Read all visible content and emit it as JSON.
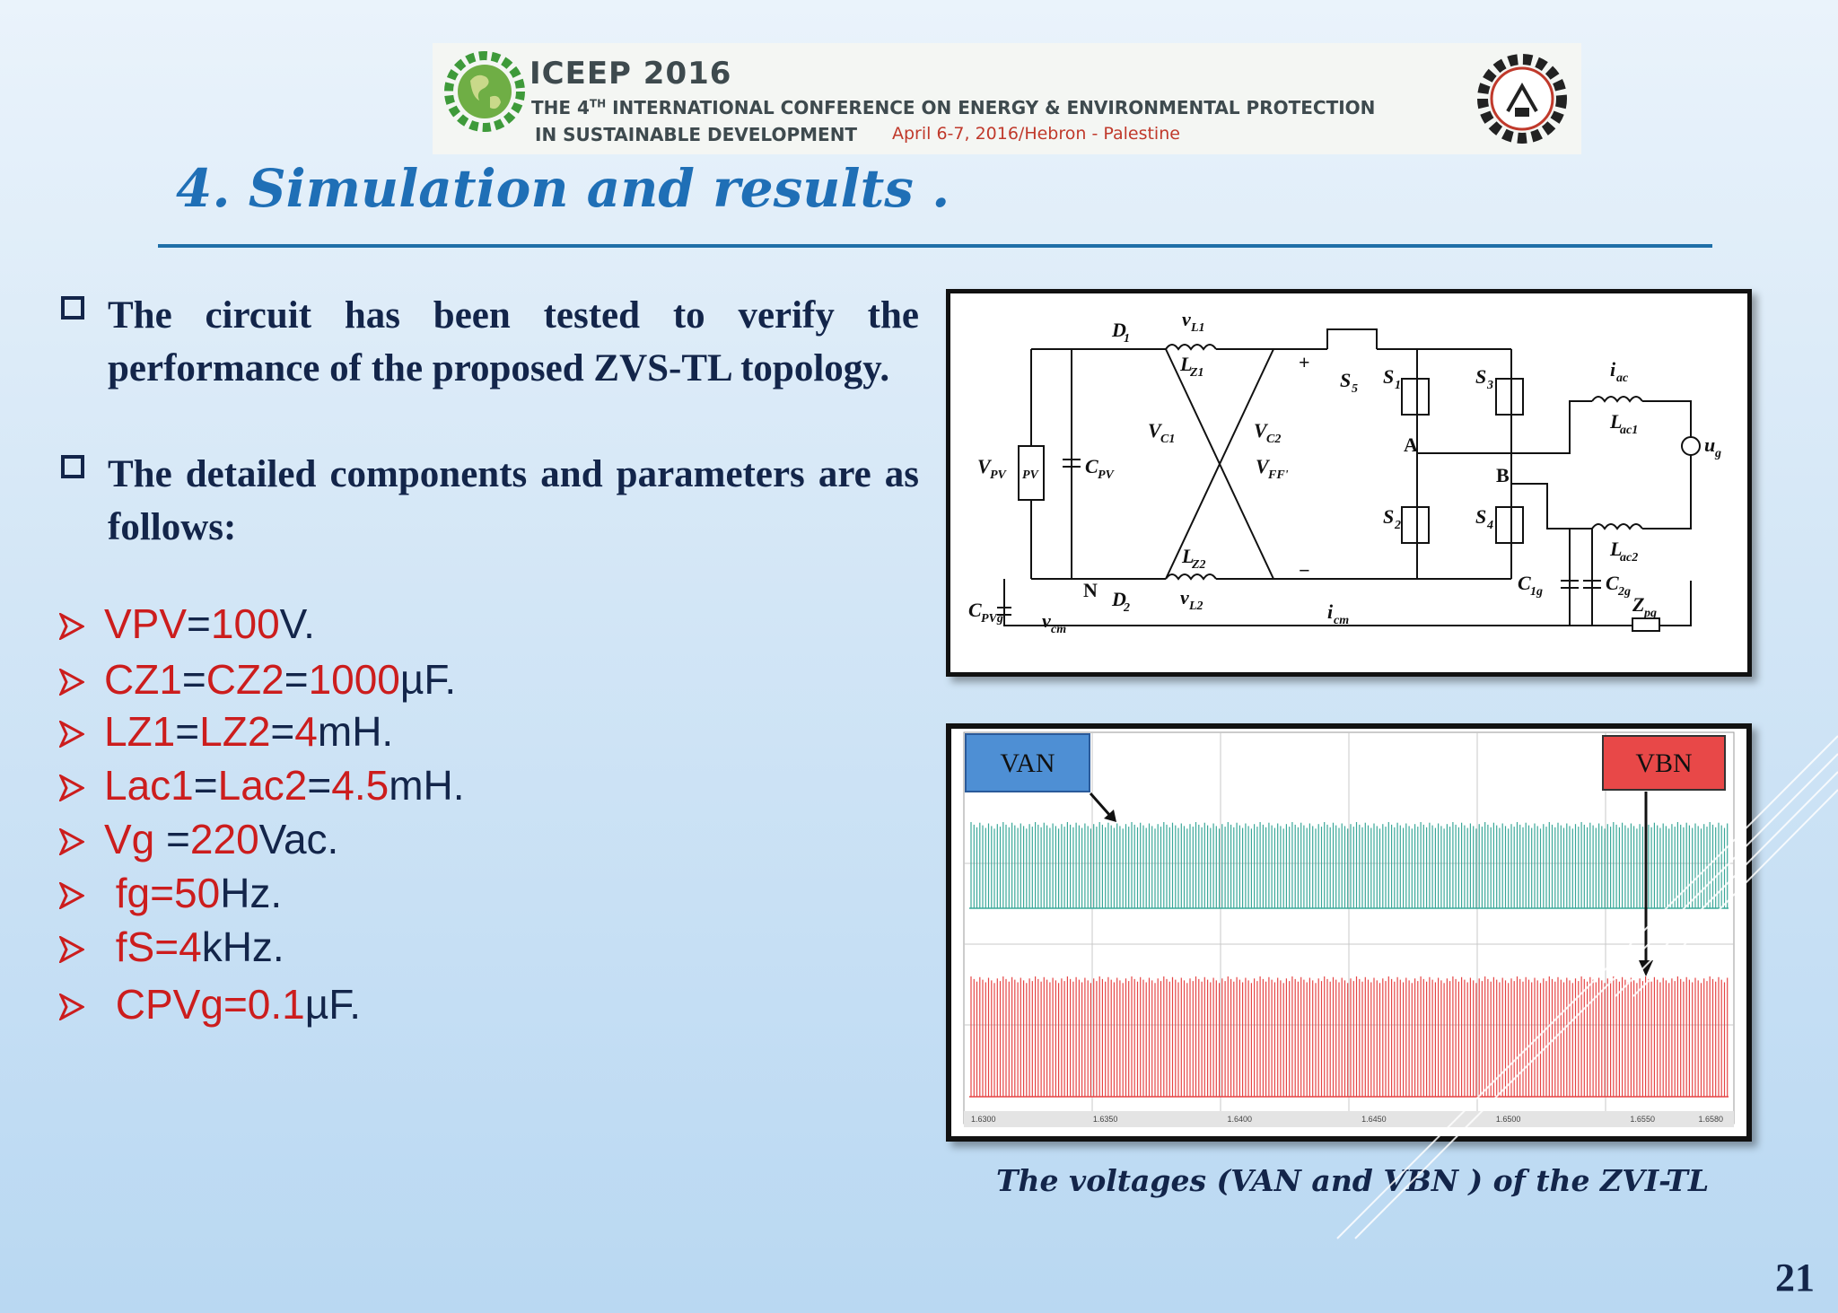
{
  "banner": {
    "title": "ICEEP 2016",
    "line1_pre": "THE 4",
    "line1_sup": "TH",
    "line1_post": " INTERNATIONAL CONFERENCE ON ENERGY & ENVIRONMENTAL PROTECTION",
    "line2": "IN SUSTAINABLE DEVELOPMENT",
    "date": "April  6-7, 2016/Hebron - Palestine"
  },
  "slide": {
    "title": "4. Simulation and results .",
    "page_number": "21"
  },
  "bullets": [
    {
      "text": "The circuit  has  been tested to verify the performance of the proposed ZVS-TL topology."
    },
    {
      "text": "The detailed components and parameters are as follows:"
    }
  ],
  "parameters": [
    {
      "parts": [
        {
          "t": "VPV",
          "c": "red"
        },
        {
          "t": "=",
          "c": "navy"
        },
        {
          "t": "100",
          "c": "red"
        },
        {
          "t": "V.",
          "c": "navy"
        }
      ]
    },
    {
      "parts": [
        {
          "t": "CZ1",
          "c": "red"
        },
        {
          "t": "=",
          "c": "navy"
        },
        {
          "t": "CZ2",
          "c": "red"
        },
        {
          "t": "=",
          "c": "navy"
        },
        {
          "t": "1000",
          "c": "red"
        },
        {
          "t": "µF.",
          "c": "navy"
        }
      ]
    },
    {
      "parts": [
        {
          "t": "LZ1",
          "c": "red"
        },
        {
          "t": "=",
          "c": "navy"
        },
        {
          "t": "LZ2",
          "c": "red"
        },
        {
          "t": "=",
          "c": "navy"
        },
        {
          "t": "4",
          "c": "red"
        },
        {
          "t": "mH.",
          "c": "navy"
        }
      ]
    },
    {
      "parts": [
        {
          "t": "Lac1",
          "c": "red"
        },
        {
          "t": "=",
          "c": "navy"
        },
        {
          "t": "Lac2",
          "c": "red"
        },
        {
          "t": "=",
          "c": "navy"
        },
        {
          "t": "4.5",
          "c": "red"
        },
        {
          "t": "mH.",
          "c": "navy"
        }
      ]
    },
    {
      "parts": [
        {
          "t": "Vg ",
          "c": "red"
        },
        {
          "t": "=",
          "c": "navy"
        },
        {
          "t": "220",
          "c": "red"
        },
        {
          "t": "Vac.",
          "c": "navy"
        }
      ]
    },
    {
      "parts": [
        {
          "t": " fg=50",
          "c": "red"
        },
        {
          "t": "Hz.",
          "c": "navy"
        }
      ]
    },
    {
      "parts": [
        {
          "t": " fS=4",
          "c": "red"
        },
        {
          "t": "kHz.",
          "c": "navy"
        }
      ]
    },
    {
      "parts": [
        {
          "t": " CPVg=0.1",
          "c": "red"
        },
        {
          "t": "µF.",
          "c": "navy"
        }
      ]
    }
  ],
  "circuit": {
    "labels": {
      "D1": "D",
      "D1_sub": "1",
      "D2": "D",
      "D2_sub": "2",
      "vL1": "v",
      "vL1_sub": "L1",
      "LZ1": "L",
      "LZ1_sub": "Z1",
      "vL2": "v",
      "vL2_sub": "L2",
      "LZ2": "L",
      "LZ2_sub": "Z2",
      "VC1": "V",
      "VC1_sub": "C1",
      "VC2": "V",
      "VC2_sub": "C2",
      "VFF": "V",
      "VFF_sub": "FF'",
      "VPV": "V",
      "VPV_sub": "PV",
      "PV": "PV",
      "CPV": "C",
      "CPV_sub": "PV",
      "CPVg": "C",
      "CPVg_sub": "PVg",
      "vcm": "v",
      "vcm_sub": "cm",
      "N": "N",
      "S1": "S",
      "S1_sub": "1",
      "S2": "S",
      "S2_sub": "2",
      "S3": "S",
      "S3_sub": "3",
      "S4": "S",
      "S4_sub": "4",
      "S5": "S",
      "S5_sub": "5",
      "A": "A",
      "B": "B",
      "iac": "i",
      "iac_sub": "ac",
      "Lac1": "L",
      "Lac1_sub": "ac1",
      "Lac2": "L",
      "Lac2_sub": "ac2",
      "ug": "u",
      "ug_sub": "g",
      "C1g": "C",
      "C1g_sub": "1g",
      "C2g": "C",
      "C2g_sub": "2g",
      "Zpg": "Z",
      "Zpg_sub": "pg",
      "icm": "i",
      "icm_sub": "cm",
      "plus": "+",
      "minus": "−"
    }
  },
  "chart_data": {
    "type": "line",
    "series": [
      {
        "name": "VAN",
        "color": "#3aa899"
      },
      {
        "name": "VBN",
        "color": "#e64545"
      }
    ],
    "x_ticks": [
      "1.6300",
      "1.6350",
      "1.6400",
      "1.6450",
      "1.6500",
      "1.6550",
      "1.6580"
    ],
    "xlim": [
      1.63,
      1.658
    ],
    "grid": true,
    "label_VAN": "VAN",
    "label_VBN": "VBN"
  },
  "caption": "The voltages (VAN and VBN ) of the ZVI-TL",
  "colors": {
    "title": "#1f6fb6",
    "rule": "#1f6fa8",
    "red": "#cc1d1d",
    "navy": "#13254a"
  }
}
